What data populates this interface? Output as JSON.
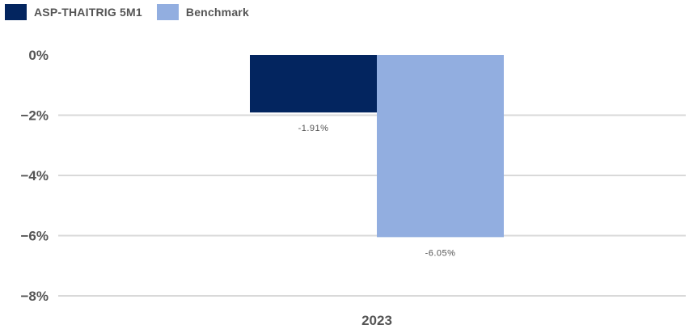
{
  "chart_data": {
    "type": "bar",
    "categories": [
      "2023"
    ],
    "series": [
      {
        "name": "ASP-THAITRIG 5M1",
        "values": [
          -1.91
        ],
        "color": "#03255f",
        "label": "-1.91%"
      },
      {
        "name": "Benchmark",
        "values": [
          -6.05
        ],
        "color": "#92aee0",
        "label": "-6.05%"
      }
    ],
    "yticks": [
      0,
      -2,
      -4,
      -6,
      -8
    ],
    "ytick_labels": [
      "0%",
      "−2%",
      "−4%",
      "−6%",
      "−8%"
    ],
    "ylim": [
      -8,
      0
    ],
    "grid": true,
    "legend_position": "top-left"
  }
}
